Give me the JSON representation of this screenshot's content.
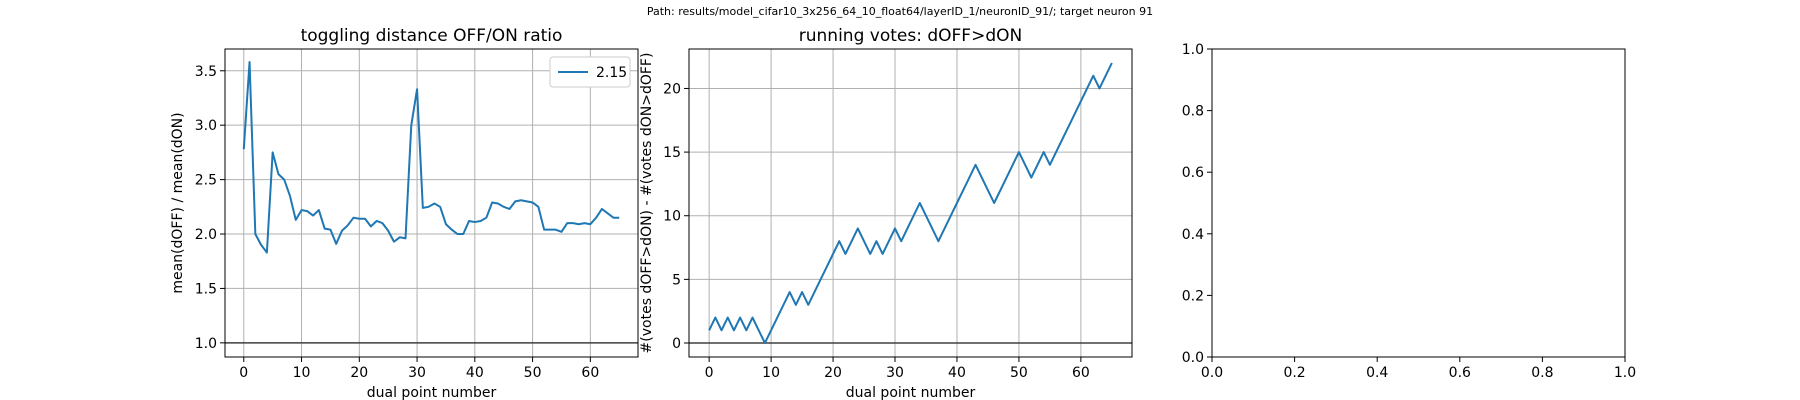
{
  "suptitle": "Path: results/model_cifar10_3x256_64_10_float64/layerID_1/neuronID_91/; target neuron 91",
  "colors": {
    "series": "#1f77b4",
    "grid": "#b0b0b0",
    "reference": "#404040"
  },
  "chart_data": [
    {
      "type": "line",
      "title": "toggling distance OFF/ON ratio",
      "xlabel": "dual point number",
      "ylabel": "mean(dOFF) / mean(dON)",
      "xlim": [
        -3.25,
        68.25
      ],
      "ylim": [
        0.87,
        3.7
      ],
      "xticks": [
        0,
        10,
        20,
        30,
        40,
        50,
        60
      ],
      "xtick_labels": [
        "0",
        "10",
        "20",
        "30",
        "40",
        "50",
        "60"
      ],
      "yticks": [
        1.0,
        1.5,
        2.0,
        2.5,
        3.0,
        3.5
      ],
      "ytick_labels": [
        "1.0",
        "1.5",
        "2.0",
        "2.5",
        "3.0",
        "3.5"
      ],
      "grid": true,
      "legend": {
        "position": "upper right",
        "entries": [
          "2.15"
        ]
      },
      "reference_line_y": 1.0,
      "series": [
        {
          "name": "2.15",
          "x": [
            0,
            1,
            2,
            3,
            4,
            5,
            6,
            7,
            8,
            9,
            10,
            11,
            12,
            13,
            14,
            15,
            16,
            17,
            18,
            19,
            20,
            21,
            22,
            23,
            24,
            25,
            26,
            27,
            28,
            29,
            30,
            31,
            32,
            33,
            34,
            35,
            36,
            37,
            38,
            39,
            40,
            41,
            42,
            43,
            44,
            45,
            46,
            47,
            48,
            49,
            50,
            51,
            52,
            53,
            54,
            55,
            56,
            57,
            58,
            59,
            60,
            61,
            62,
            63,
            64,
            65
          ],
          "y": [
            2.78,
            3.58,
            2.0,
            1.9,
            1.83,
            2.75,
            2.55,
            2.5,
            2.35,
            2.13,
            2.22,
            2.21,
            2.17,
            2.22,
            2.05,
            2.04,
            1.91,
            2.03,
            2.08,
            2.15,
            2.14,
            2.14,
            2.07,
            2.12,
            2.1,
            2.03,
            1.93,
            1.97,
            1.96,
            3.0,
            3.33,
            2.24,
            2.25,
            2.28,
            2.25,
            2.09,
            2.04,
            2.0,
            2.0,
            2.12,
            2.11,
            2.12,
            2.15,
            2.29,
            2.28,
            2.25,
            2.23,
            2.3,
            2.31,
            2.3,
            2.29,
            2.25,
            2.04,
            2.04,
            2.04,
            2.02,
            2.1,
            2.1,
            2.09,
            2.1,
            2.09,
            2.15,
            2.23,
            2.19,
            2.15,
            2.15
          ]
        }
      ]
    },
    {
      "type": "line",
      "title": "running votes: dOFF>dON",
      "xlabel": "dual point number",
      "ylabel": "#(votes dOFF>dON) - #(votes dON>dOFF)",
      "xlim": [
        -3.25,
        68.25
      ],
      "ylim": [
        -1.1,
        23.1
      ],
      "xticks": [
        0,
        10,
        20,
        30,
        40,
        50,
        60
      ],
      "xtick_labels": [
        "0",
        "10",
        "20",
        "30",
        "40",
        "50",
        "60"
      ],
      "yticks": [
        0,
        5,
        10,
        15,
        20
      ],
      "ytick_labels": [
        "0",
        "5",
        "10",
        "15",
        "20"
      ],
      "grid": true,
      "reference_line_y": 0,
      "series": [
        {
          "x": [
            0,
            1,
            2,
            3,
            4,
            5,
            6,
            7,
            8,
            9,
            10,
            11,
            12,
            13,
            14,
            15,
            16,
            17,
            18,
            19,
            20,
            21,
            22,
            23,
            24,
            25,
            26,
            27,
            28,
            29,
            30,
            31,
            32,
            33,
            34,
            35,
            36,
            37,
            38,
            39,
            40,
            41,
            42,
            43,
            44,
            45,
            46,
            47,
            48,
            49,
            50,
            51,
            52,
            53,
            54,
            55,
            56,
            57,
            58,
            59,
            60,
            61,
            62,
            63,
            64,
            65
          ],
          "y": [
            1,
            2,
            1,
            2,
            1,
            2,
            1,
            2,
            1,
            0,
            1,
            2,
            3,
            4,
            3,
            4,
            3,
            4,
            5,
            6,
            7,
            8,
            7,
            8,
            9,
            8,
            7,
            8,
            7,
            8,
            9,
            8,
            9,
            10,
            11,
            10,
            9,
            8,
            9,
            10,
            11,
            12,
            13,
            14,
            13,
            12,
            11,
            12,
            13,
            14,
            15,
            14,
            13,
            14,
            15,
            14,
            15,
            16,
            17,
            18,
            19,
            20,
            21,
            20,
            21,
            22
          ]
        }
      ]
    },
    {
      "type": "line",
      "title": "",
      "xlabel": "",
      "ylabel": "",
      "xlim": [
        0,
        1
      ],
      "ylim": [
        0,
        1
      ],
      "xticks": [
        0,
        0.2,
        0.4,
        0.6,
        0.8,
        1.0
      ],
      "xtick_labels": [
        "0.0",
        "0.2",
        "0.4",
        "0.6",
        "0.8",
        "1.0"
      ],
      "yticks": [
        0,
        0.2,
        0.4,
        0.6,
        0.8,
        1.0
      ],
      "ytick_labels": [
        "0.0",
        "0.2",
        "0.4",
        "0.6",
        "0.8",
        "1.0"
      ],
      "grid": false,
      "series": []
    }
  ]
}
